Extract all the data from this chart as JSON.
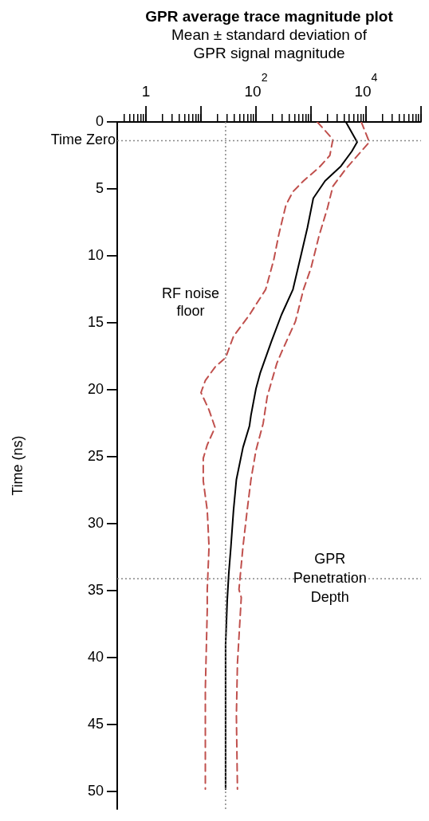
{
  "chart_data": {
    "type": "line",
    "title": "GPR average trace magnitude plot",
    "xlabel": "Mean ± standard deviation of GPR signal magnitude",
    "ylabel": "Time (ns)",
    "log": "x",
    "xlim": [
      0.32,
      100000
    ],
    "ylim": [
      51.3,
      0
    ],
    "xticks": [
      {
        "value": 0.4,
        "label": null
      },
      {
        "value": 0.5,
        "label": null
      },
      {
        "value": 0.6,
        "label": null
      },
      {
        "value": 0.7,
        "label": null
      },
      {
        "value": 0.8,
        "label": null
      },
      {
        "value": 0.9,
        "label": null
      },
      1,
      {
        "value": 2,
        "label": null
      },
      {
        "value": 3,
        "label": null
      },
      {
        "value": 4,
        "label": null
      },
      {
        "value": 5,
        "label": null
      },
      {
        "value": 6,
        "label": null
      },
      {
        "value": 7,
        "label": null
      },
      {
        "value": 8,
        "label": null
      },
      {
        "value": 9,
        "label": null
      },
      {
        "value": 10,
        "label": null
      },
      {
        "value": 20,
        "label": null
      },
      {
        "value": 30,
        "label": null
      },
      {
        "value": 40,
        "label": null
      },
      {
        "value": 50,
        "label": null
      },
      {
        "value": 60,
        "label": null
      },
      {
        "value": 70,
        "label": null
      },
      {
        "value": 80,
        "label": null
      },
      {
        "value": 90,
        "label": null
      },
      {
        "value": 100,
        "label": "10$^{2}$"
      },
      {
        "value": 200,
        "label": null
      },
      {
        "value": 300,
        "label": null
      },
      {
        "value": 400,
        "label": null
      },
      {
        "value": 500,
        "label": null
      },
      {
        "value": 600,
        "label": null
      },
      {
        "value": 700,
        "label": null
      },
      {
        "value": 800,
        "label": null
      },
      {
        "value": 900,
        "label": null
      },
      {
        "value": 1000,
        "label": null
      },
      {
        "value": 2000,
        "label": null
      },
      {
        "value": 3000,
        "label": null
      },
      {
        "value": 4000,
        "label": null
      },
      {
        "value": 5000,
        "label": null
      },
      {
        "value": 6000,
        "label": null
      },
      {
        "value": 7000,
        "label": null
      },
      {
        "value": 8000,
        "label": null
      },
      {
        "value": 9000,
        "label": null
      },
      {
        "value": 10000,
        "label": "10$^{4}$"
      },
      {
        "value": 20000,
        "label": null
      },
      {
        "value": 30000,
        "label": null
      },
      {
        "value": 40000,
        "label": null
      },
      {
        "value": 50000,
        "label": null
      },
      {
        "value": 60000,
        "label": null
      },
      {
        "value": 70000,
        "label": null
      },
      {
        "value": 80000,
        "label": null
      },
      {
        "value": 90000,
        "label": null
      },
      {
        "value": 100000,
        "label": null
      }
    ],
    "yticks": [
      0,
      5,
      10,
      15,
      20,
      25,
      30,
      35,
      40,
      45,
      50
    ],
    "series": [
      {
        "color": "#000000",
        "line_style": "solid",
        "x": [
          4300,
          6900,
          5500,
          3500,
          1800,
          1100,
          860,
          680,
          470,
          290,
          190,
          120,
          100,
          81,
          76,
          58,
          44,
          39,
          35,
          32,
          30,
          28,
          28
        ],
        "values": [
          0,
          1.5,
          2.2,
          3.3,
          4.4,
          5.7,
          7.9,
          9.7,
          12.5,
          14.4,
          16.4,
          18.7,
          19.9,
          21.9,
          22.7,
          24.3,
          26.7,
          29.0,
          31.7,
          33.7,
          35.7,
          39.0,
          49.8
        ]
      },
      {
        "color": "#c0504d",
        "line_style": "dashed",
        "x": [
          1300,
          2500,
          2200,
          1400,
          730,
          470,
          350,
          260,
          210,
          150,
          76,
          39,
          28,
          18,
          12,
          10,
          14,
          18,
          13,
          11,
          11,
          13,
          14,
          13,
          13,
          12,
          12
        ],
        "values": [
          0,
          1.3,
          2.5,
          3.4,
          4.4,
          5.2,
          6.2,
          8.4,
          10.3,
          12.5,
          14.4,
          16.0,
          17.6,
          18.3,
          19.3,
          20.2,
          21.5,
          22.8,
          24.1,
          25.1,
          26.8,
          29.0,
          31.7,
          34.9,
          36.4,
          42.3,
          49.8
        ]
      },
      {
        "color": "#c0504d",
        "line_style": "dashed",
        "x": [
          8200,
          11500,
          4300,
          2500,
          2000,
          1400,
          1000,
          730,
          520,
          290,
          240,
          160,
          135,
          100,
          81,
          69,
          58,
          49,
          54,
          46,
          44,
          46
        ],
        "values": [
          0,
          1.5,
          3.5,
          4.8,
          6.4,
          8.5,
          10.9,
          12.5,
          14.9,
          17.2,
          18.0,
          20.5,
          22.5,
          24.5,
          26.7,
          29.0,
          31.7,
          34.9,
          35.5,
          40.4,
          44.3,
          49.8
        ]
      }
    ],
    "ref_lines": [
      {
        "axis": "y",
        "value": 1.4,
        "label": "Time Zero",
        "color": "#888888",
        "line_style": "dotted"
      },
      {
        "axis": "x",
        "value": 28,
        "label": "RF noise floor",
        "color": "#888888",
        "line_style": "dotted"
      },
      {
        "axis": "y",
        "value": 34.1,
        "label": "GPR Penetration Depth",
        "color": "#888888",
        "line_style": "dotted"
      }
    ]
  }
}
